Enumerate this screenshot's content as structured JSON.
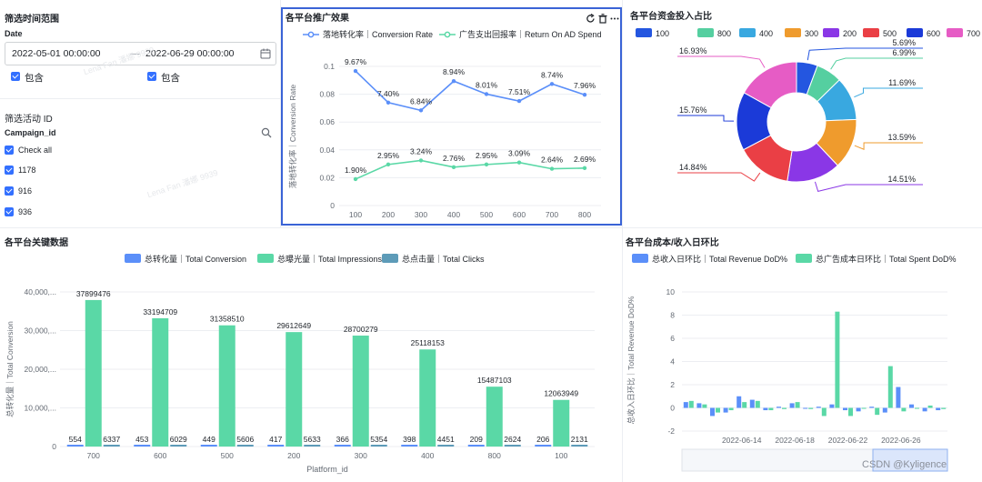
{
  "filters": {
    "time_title": "筛选时间范围",
    "date_label": "Date",
    "start_date": "2022-05-01 00:00:00",
    "range_sep": "—",
    "end_date": "2022-06-29 00:00:00",
    "include_start": "包含",
    "include_end": "包含",
    "campaign_title": "筛选活动 ID",
    "campaign_field": "Campaign_id",
    "check_all": "Check all",
    "campaigns": [
      "1178",
      "916",
      "936"
    ]
  },
  "watermark": "Lena Fan 潘娜 9939",
  "line_chart": {
    "title": "各平台推广效果",
    "series_names": [
      "落地转化率｜Conversion Rate",
      "广告支出回报率｜Return On AD Spend"
    ],
    "ylabel": "落地转化率｜Conversion Rate",
    "yticks": [
      "0",
      "0.02",
      "0.04",
      "0.06",
      "0.08",
      "0.1"
    ],
    "categories": [
      "100",
      "200",
      "300",
      "400",
      "500",
      "600",
      "700",
      "800"
    ],
    "labels_a": [
      "9.67%",
      "7.40%",
      "6.84%",
      "8.94%",
      "8.01%",
      "7.51%",
      "8.74%",
      "7.96%"
    ],
    "labels_b": [
      "1.90%",
      "2.95%",
      "3.24%",
      "2.76%",
      "2.95%",
      "3.09%",
      "2.64%",
      "2.69%"
    ]
  },
  "pie_chart": {
    "title": "各平台资金投入占比",
    "legend": [
      "100",
      "800",
      "400",
      "300",
      "200",
      "500",
      "600",
      "700"
    ],
    "labels": [
      "5.69%",
      "6.99%",
      "11.69%",
      "13.59%",
      "14.51%",
      "14.84%",
      "15.76%",
      "16.93%"
    ]
  },
  "bar_chart": {
    "title": "各平台关键数据",
    "series_names": [
      "总转化量｜Total Conversion",
      "总曝光量｜Total Impressions",
      "总点击量｜Total Clicks"
    ],
    "ylabel": "总转化量｜Total Conversion",
    "xlabel": "Platform_id",
    "yticks": [
      "0",
      "10,000,...",
      "20,000,...",
      "30,000,...",
      "40,000,..."
    ],
    "categories": [
      "700",
      "600",
      "500",
      "200",
      "300",
      "400",
      "800",
      "100"
    ],
    "labels_conv": [
      "554",
      "453",
      "449",
      "417",
      "366",
      "398",
      "209",
      "206"
    ],
    "labels_impr": [
      "37899476",
      "33194709",
      "31358510",
      "29612649",
      "28700279",
      "25118153",
      "15487103",
      "12063949"
    ],
    "labels_clicks": [
      "6337",
      "6029",
      "5606",
      "5633",
      "5354",
      "4451",
      "2624",
      "2131"
    ]
  },
  "dod_chart": {
    "title": "各平台成本/收入日环比",
    "series_names": [
      "总收入日环比｜Total Revenue DoD%",
      "总广告成本日环比｜Total Spent DoD%"
    ],
    "ylabel": "总收入日环比｜Total Revenue DoD%",
    "xlabel": "Date",
    "yticks": [
      "-2",
      "0",
      "2",
      "4",
      "6",
      "8",
      "10"
    ],
    "xticks": [
      "2022-06-14",
      "2022-06-18",
      "2022-06-22",
      "2022-06-26"
    ]
  },
  "footer": {
    "credit": "CSDN @Kyligence"
  },
  "chart_data": [
    {
      "type": "line",
      "title": "各平台推广效果",
      "ylabel": "落地转化率｜Conversion Rate",
      "categories": [
        "100",
        "200",
        "300",
        "400",
        "500",
        "600",
        "700",
        "800"
      ],
      "ylim": [
        0,
        0.1
      ],
      "series": [
        {
          "name": "落地转化率｜Conversion Rate",
          "color": "#5b8ff9",
          "values": [
            0.0967,
            0.074,
            0.0684,
            0.0894,
            0.0801,
            0.0751,
            0.0874,
            0.0796
          ]
        },
        {
          "name": "广告支出回报率｜Return On AD Spend",
          "color": "#5ad8a6",
          "values": [
            0.019,
            0.0295,
            0.0324,
            0.0276,
            0.0295,
            0.0309,
            0.0264,
            0.0269
          ]
        }
      ]
    },
    {
      "type": "pie",
      "title": "各平台资金投入占比",
      "categories": [
        "100",
        "800",
        "400",
        "300",
        "200",
        "500",
        "600",
        "700"
      ],
      "values": [
        5.69,
        6.99,
        11.69,
        13.59,
        14.51,
        14.84,
        15.76,
        16.93
      ],
      "colors": [
        "#2456e0",
        "#55cfa0",
        "#39a8e0",
        "#ef9b2d",
        "#8a37e6",
        "#ea3f45",
        "#1b3ad8",
        "#e65cc5"
      ]
    },
    {
      "type": "bar",
      "title": "各平台关键数据",
      "xlabel": "Platform_id",
      "ylabel": "总转化量｜Total Conversion",
      "categories": [
        "700",
        "600",
        "500",
        "200",
        "300",
        "400",
        "800",
        "100"
      ],
      "ylim": [
        0,
        40000000
      ],
      "series": [
        {
          "name": "总转化量｜Total Conversion",
          "color": "#5b8ff9",
          "values": [
            554,
            453,
            449,
            417,
            366,
            398,
            209,
            206
          ]
        },
        {
          "name": "总曝光量｜Total Impressions",
          "color": "#5ad8a6",
          "values": [
            37899476,
            33194709,
            31358510,
            29612649,
            28700279,
            25118153,
            15487103,
            12063949
          ]
        },
        {
          "name": "总点击量｜Total Clicks",
          "color": "#5d9bb8",
          "values": [
            6337,
            6029,
            5606,
            5633,
            5354,
            4451,
            2624,
            2131
          ]
        }
      ]
    },
    {
      "type": "bar",
      "title": "各平台成本/收入日环比",
      "xlabel": "Date",
      "ylabel": "总收入日环比｜Total Revenue DoD%",
      "x": [
        "2022-06-10",
        "2022-06-11",
        "2022-06-12",
        "2022-06-13",
        "2022-06-14",
        "2022-06-15",
        "2022-06-16",
        "2022-06-17",
        "2022-06-18",
        "2022-06-19",
        "2022-06-20",
        "2022-06-21",
        "2022-06-22",
        "2022-06-23",
        "2022-06-24",
        "2022-06-25",
        "2022-06-26",
        "2022-06-27",
        "2022-06-28",
        "2022-06-29"
      ],
      "ylim": [
        -2,
        10
      ],
      "series": [
        {
          "name": "总收入日环比｜Total Revenue DoD%",
          "color": "#5b8ff9",
          "values": [
            0.5,
            0.4,
            -0.7,
            -0.4,
            1.0,
            0.7,
            -0.2,
            0.1,
            0.4,
            0.0,
            0.1,
            0.3,
            -0.2,
            -0.3,
            0.1,
            -0.4,
            1.8,
            0.3,
            -0.3,
            -0.2
          ]
        },
        {
          "name": "总广告成本日环比｜Total Spent DoD%",
          "color": "#5ad8a6",
          "values": [
            0.6,
            0.3,
            -0.4,
            -0.2,
            0.5,
            0.6,
            -0.2,
            -0.1,
            0.5,
            -0.1,
            -0.7,
            8.3,
            -0.7,
            0.0,
            -0.6,
            3.6,
            -0.3,
            0.0,
            0.2,
            -0.1
          ]
        }
      ]
    }
  ]
}
